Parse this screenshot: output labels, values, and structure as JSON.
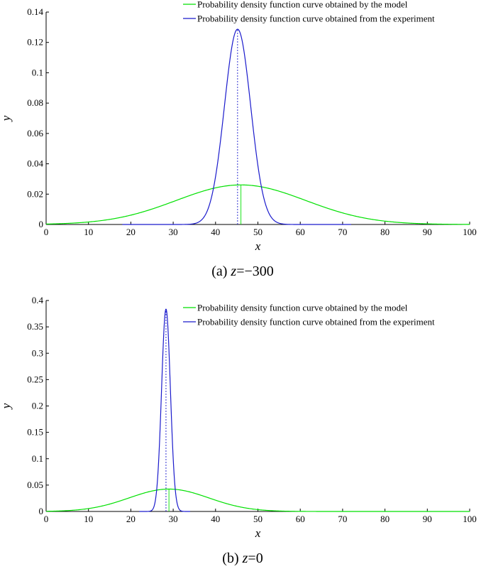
{
  "chart_data": [
    {
      "type": "line",
      "caption_prefix": "(a)",
      "caption_var": "z",
      "caption_value": "=−300",
      "xlabel": "x",
      "ylabel": "y",
      "xlim": [
        0,
        100
      ],
      "ylim": [
        0,
        0.14
      ],
      "xticks": [
        0,
        10,
        20,
        30,
        40,
        50,
        60,
        70,
        80,
        90,
        100
      ],
      "xtick_labels": [
        "0",
        "10",
        "20",
        "30",
        "40",
        "50",
        "60",
        "70",
        "80",
        "90",
        "100"
      ],
      "yticks": [
        0,
        0.02,
        0.04,
        0.06,
        0.08,
        0.1,
        0.12,
        0.14
      ],
      "ytick_labels": [
        "0",
        "0.02",
        "0.04",
        "0.06",
        "0.08",
        "0.1",
        "0.12",
        "0.14"
      ],
      "grid": false,
      "legend_position": "top-right",
      "series": [
        {
          "name": "Probability density function curve obtained by the model",
          "color": "#00e000",
          "distribution": "normal",
          "mean": 46,
          "std": 15.3,
          "x_range": [
            0,
            100
          ],
          "mean_marker": "solid"
        },
        {
          "name": "Probability density function curve obtained from the experiment",
          "color": "#1a1acc",
          "distribution": "normal",
          "mean": 45.2,
          "std": 3.1,
          "x_range": [
            18,
            72
          ],
          "mean_marker": "dotted"
        }
      ]
    },
    {
      "type": "line",
      "caption_prefix": "(b)",
      "caption_var": "z",
      "caption_value": "=0",
      "xlabel": "x",
      "ylabel": "y",
      "xlim": [
        0,
        100
      ],
      "ylim": [
        0,
        0.4
      ],
      "xticks": [
        0,
        10,
        20,
        30,
        40,
        50,
        60,
        70,
        80,
        90,
        100
      ],
      "xtick_labels": [
        "0",
        "10",
        "20",
        "30",
        "40",
        "50",
        "60",
        "70",
        "80",
        "90",
        "100"
      ],
      "yticks": [
        0,
        0.05,
        0.1,
        0.15,
        0.2,
        0.25,
        0.3,
        0.35,
        0.4
      ],
      "ytick_labels": [
        "0",
        "0.05",
        "0.1",
        "0.15",
        "0.2",
        "0.25",
        "0.3",
        "0.35",
        "0.4"
      ],
      "grid": false,
      "legend_position": "top-right",
      "series": [
        {
          "name": "Probability density function curve obtained by the model",
          "color": "#00e000",
          "distribution": "normal",
          "mean": 29,
          "std": 9.4,
          "x_range": [
            0,
            100
          ],
          "mean_marker": "solid"
        },
        {
          "name": "Probability density function curve obtained from the experiment",
          "color": "#1a1acc",
          "distribution": "normal",
          "mean": 28.3,
          "std": 1.04,
          "x_range": [
            22,
            34
          ],
          "mean_marker": "dotted"
        }
      ]
    }
  ]
}
